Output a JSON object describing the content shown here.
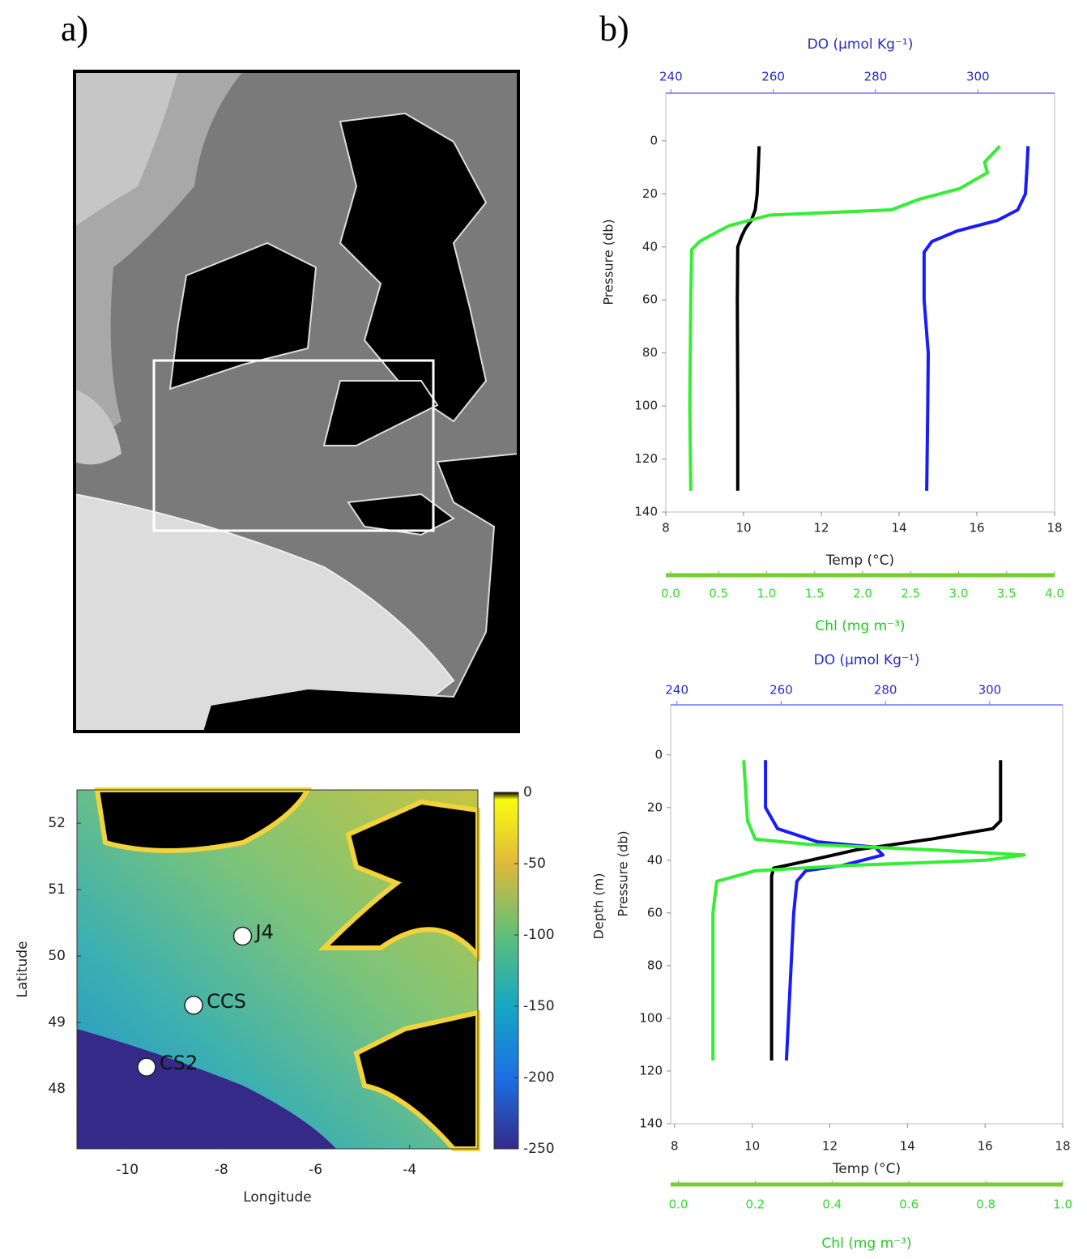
{
  "panel_labels": [
    "a)",
    "b)"
  ],
  "chart_data": [
    {
      "type": "scatter",
      "xlabel": "Longitude",
      "ylabel": "Latitude",
      "xlim": [
        -11.07,
        -2.55
      ],
      "ylim": [
        47.1,
        52.5
      ],
      "xticks": [
        -10,
        -8,
        -6,
        -4
      ],
      "yticks": [
        48,
        49,
        50,
        51,
        52
      ],
      "series": [
        {
          "color": "#ffffff",
          "x": [
            -7.55,
            -8.59,
            -9.59
          ],
          "values": [
            50.3,
            49.26,
            48.33
          ],
          "labels": [
            "J4",
            "CCS",
            "CS2"
          ]
        }
      ],
      "colorbar": {
        "lim": [
          -250,
          0
        ],
        "ticks": [
          0,
          -50,
          -100,
          -150,
          -200,
          -250
        ]
      }
    },
    {
      "type": "profile",
      "xlabel": "Temp (°C)",
      "x2label": "DO (μmol Kg⁻¹)",
      "x3label": "Chl (mg m⁻³)",
      "ylabel": "Pressure (db)",
      "xlim": [
        8,
        18
      ],
      "xticks": [
        8,
        10,
        12,
        14,
        16,
        18
      ],
      "x2lim": [
        239,
        315
      ],
      "x2ticks": [
        240,
        260,
        280,
        300
      ],
      "x3lim": [
        -0.05,
        4.0
      ],
      "x3ticks": [
        {
          "value": 0,
          "label": "0.0"
        },
        {
          "value": 0.5,
          "label": "0.5"
        },
        {
          "value": 1,
          "label": "1.0"
        },
        {
          "value": 1.5,
          "label": "1.5"
        },
        {
          "value": 2,
          "label": "2.0"
        },
        {
          "value": 2.5,
          "label": "2.5"
        },
        {
          "value": 3,
          "label": "3.0"
        },
        {
          "value": 3.5,
          "label": "3.5"
        },
        {
          "value": 4,
          "label": "4.0"
        }
      ],
      "ylim": [
        -18,
        140
      ],
      "y_inverted": true,
      "yticks": [
        0,
        20,
        40,
        60,
        80,
        100,
        120,
        140
      ],
      "series": [
        {
          "axis": "x",
          "color": "#000000",
          "depth": [
            2,
            10,
            20,
            26,
            30,
            33,
            36,
            40,
            60,
            100,
            132
          ],
          "values": [
            10.4,
            10.38,
            10.35,
            10.3,
            10.2,
            10.05,
            9.95,
            9.85,
            9.84,
            9.85,
            9.85
          ]
        },
        {
          "axis": "x2",
          "color": "#1a1aff",
          "depth": [
            2,
            10,
            20,
            26,
            30,
            34,
            38,
            42,
            60,
            80,
            100,
            132
          ],
          "values": [
            309.8,
            309.6,
            309.3,
            307.8,
            303.8,
            295.9,
            291,
            289.5,
            289.5,
            290.3,
            290.2,
            290
          ]
        },
        {
          "axis": "x3",
          "color": "#33ee33",
          "depth": [
            2,
            8,
            12,
            18,
            22,
            26,
            28,
            32,
            35,
            38,
            41,
            60,
            100,
            132
          ],
          "values": [
            3.43,
            3.27,
            3.3,
            3.01,
            2.59,
            2.3,
            1.03,
            0.61,
            0.45,
            0.3,
            0.22,
            0.21,
            0.2,
            0.21
          ]
        }
      ]
    },
    {
      "type": "profile",
      "xlabel": "Temp (°C)",
      "x2label": "DO (μmol Kg⁻¹)",
      "x3label": "Chl (mg m⁻³)",
      "ylabel": "Pressure (db)",
      "ylabel_outer": "Depth (m)",
      "xlim": [
        7.9,
        18
      ],
      "xticks": [
        8,
        10,
        12,
        14,
        16,
        18
      ],
      "x2lim": [
        238.8,
        314
      ],
      "x2ticks": [
        240,
        260,
        280,
        300
      ],
      "x3lim": [
        -0.02,
        1.0
      ],
      "x3ticks": [
        {
          "value": 0,
          "label": "0.0"
        },
        {
          "value": 0.2,
          "label": "0.2"
        },
        {
          "value": 0.4,
          "label": "0.4"
        },
        {
          "value": 0.6,
          "label": "0.6"
        },
        {
          "value": 0.8,
          "label": "0.8"
        },
        {
          "value": 1,
          "label": "1.0"
        }
      ],
      "ylim": [
        -19,
        140
      ],
      "y_inverted": true,
      "yticks": [
        0,
        20,
        40,
        60,
        80,
        100,
        120,
        140
      ],
      "series": [
        {
          "axis": "x",
          "color": "#000000",
          "depth": [
            2,
            25,
            28,
            32,
            36,
            40,
            43,
            46,
            60,
            116
          ],
          "values": [
            16.4,
            16.4,
            16.2,
            14.6,
            12.7,
            11.5,
            10.55,
            10.5,
            10.5,
            10.5
          ]
        },
        {
          "axis": "x2",
          "color": "#1a1aff",
          "depth": [
            2,
            20,
            28,
            33,
            35,
            38,
            42,
            44,
            48,
            60,
            116
          ],
          "values": [
            257,
            257,
            259.3,
            267,
            278,
            279.5,
            271.7,
            264.7,
            263,
            262.4,
            261
          ]
        },
        {
          "axis": "x3",
          "color": "#33ee33",
          "depth": [
            2,
            25,
            32,
            34,
            36,
            38,
            40,
            42,
            44,
            48,
            60,
            116
          ],
          "values": [
            0.17,
            0.18,
            0.2,
            0.34,
            0.65,
            0.9,
            0.8,
            0.44,
            0.2,
            0.1,
            0.09,
            0.09
          ]
        }
      ]
    }
  ]
}
